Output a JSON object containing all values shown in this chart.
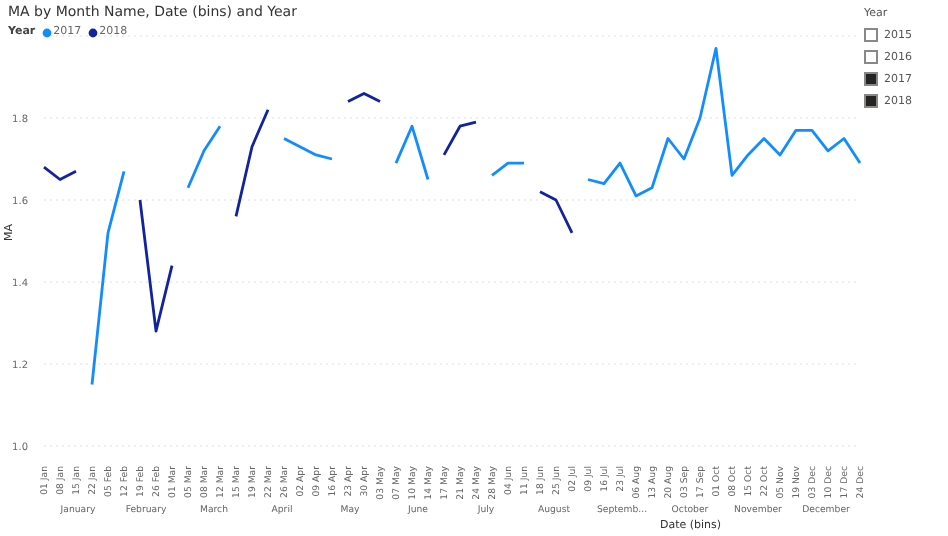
{
  "chart_data": [
    {
      "type": "line",
      "title": "MA by Month Name, Date (bins) and Year",
      "xlabel": "Date (bins)",
      "ylabel": "MA",
      "legend_title": "Year",
      "legend": "top left",
      "grid": "y",
      "marker": "none",
      "line_style": "solid",
      "categories": [
        "01 Jan",
        "08 Jan",
        "15 Jan",
        "22 Jan",
        "05 Feb",
        "12 Feb",
        "19 Feb",
        "26 Feb",
        "01 Mar",
        "05 Mar",
        "08 Mar",
        "12 Mar",
        "15 Mar",
        "19 Mar",
        "22 Mar",
        "26 Mar",
        "02 Apr",
        "09 Apr",
        "16 Apr",
        "23 Apr",
        "30 Apr",
        "03 May",
        "07 May",
        "10 May",
        "14 May",
        "17 May",
        "21 May",
        "24 May",
        "28 May",
        "04 Jun",
        "11 Jun",
        "18 Jun",
        "25 Jun",
        "02 Jul",
        "09 Jul",
        "16 Jul",
        "23 Jul",
        "06 Aug",
        "13 Aug",
        "20 Aug",
        "03 Sep",
        "17 Sep",
        "01 Oct",
        "08 Oct",
        "15 Oct",
        "22 Oct",
        "05 Nov",
        "19 Nov",
        "03 Dec",
        "10 Dec",
        "17 Dec",
        "24 Dec"
      ],
      "series": [
        {
          "name": "2017",
          "color": "#118dff",
          "values": [
            null,
            null,
            null,
            1.15,
            1.52,
            1.67,
            null,
            null,
            null,
            1.63,
            1.72,
            1.78,
            null,
            null,
            null,
            1.75,
            1.73,
            1.71,
            1.7,
            null,
            null,
            null,
            1.69,
            1.78,
            1.65,
            null,
            null,
            null,
            1.66,
            1.69,
            1.69,
            null,
            null,
            null,
            1.65,
            1.64,
            1.69,
            1.61,
            1.63,
            1.75,
            1.7,
            1.8,
            1.97,
            1.66,
            1.71,
            1.75,
            1.71,
            1.77,
            1.77,
            1.72,
            1.75,
            1.69
          ]
        },
        {
          "name": "2018",
          "color": "#12239e",
          "values": [
            1.68,
            1.65,
            1.67,
            null,
            null,
            null,
            1.6,
            1.28,
            1.44,
            null,
            null,
            null,
            1.56,
            1.73,
            1.82,
            null,
            null,
            null,
            null,
            1.84,
            1.86,
            1.84,
            null,
            null,
            null,
            1.71,
            1.78,
            1.79,
            null,
            null,
            null,
            1.62,
            1.6,
            1.52,
            null,
            null,
            null,
            null,
            null,
            null,
            null,
            null,
            null,
            null,
            null,
            null,
            null,
            null,
            null,
            null,
            null,
            null
          ]
        }
      ],
      "ylim": [
        1.0,
        2.0
      ],
      "yticks": [
        {
          "value": 1,
          "label": "1.0"
        },
        {
          "value": 1.2,
          "label": "1.2"
        },
        {
          "value": 1.4,
          "label": "1.4"
        },
        {
          "value": 1.6,
          "label": "1.6"
        },
        {
          "value": 1.8,
          "label": "1.8"
        }
      ],
      "annotations": [
        "January",
        "February",
        "March",
        "April",
        "May",
        "June",
        "July",
        "August",
        "Septemb...",
        "October",
        "November",
        "December",
        {
          "text": "2015"
        },
        {
          "text": "2016"
        },
        {
          "text": "2017"
        },
        {
          "text": "2018"
        }
      ]
    }
  ]
}
